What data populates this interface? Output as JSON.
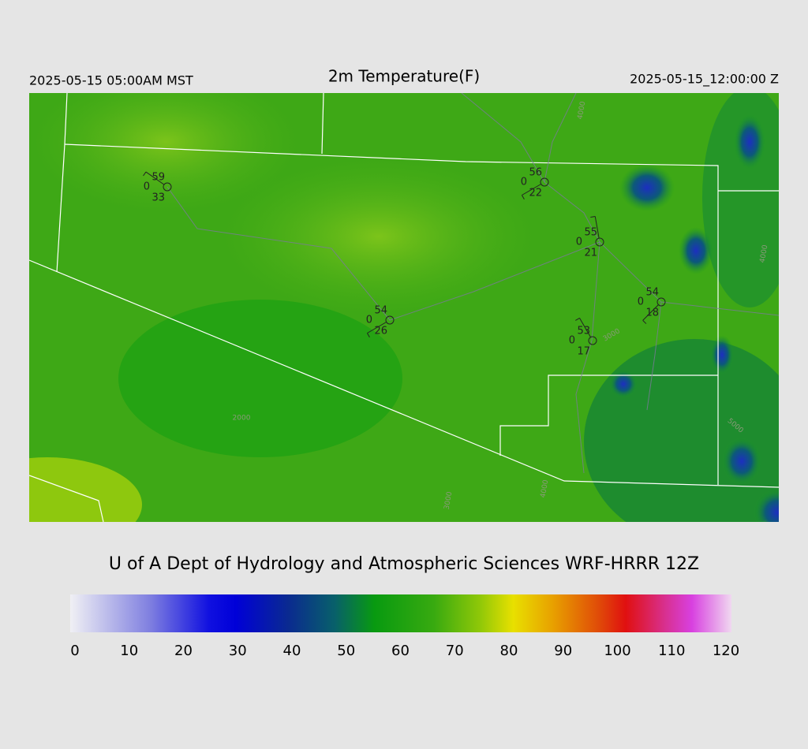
{
  "header": {
    "left": "2025-05-15 05:00AM MST",
    "title": "2m Temperature(F)",
    "right": "2025-05-15_12:00:00 Z"
  },
  "map": {
    "stations": [
      {
        "temp": 59,
        "cloud": 0,
        "dewpoint": 33
      },
      {
        "temp": 56,
        "cloud": 0,
        "dewpoint": 22
      },
      {
        "temp": 55,
        "cloud": 0,
        "dewpoint": 21
      },
      {
        "temp": 54,
        "cloud": 0,
        "dewpoint": 26
      },
      {
        "temp": 54,
        "cloud": 0,
        "dewpoint": 18
      },
      {
        "temp": 53,
        "cloud": 0,
        "dewpoint": 17
      }
    ],
    "contour_labels": [
      "4000",
      "4000",
      "2000",
      "3000",
      "4000",
      "5000",
      "3000"
    ]
  },
  "caption": "U of A Dept of Hydrology and Atmospheric Sciences WRF-HRRR 12Z",
  "colorbar": {
    "ticks": [
      0,
      10,
      20,
      30,
      40,
      50,
      60,
      70,
      80,
      90,
      100,
      110,
      120
    ]
  }
}
